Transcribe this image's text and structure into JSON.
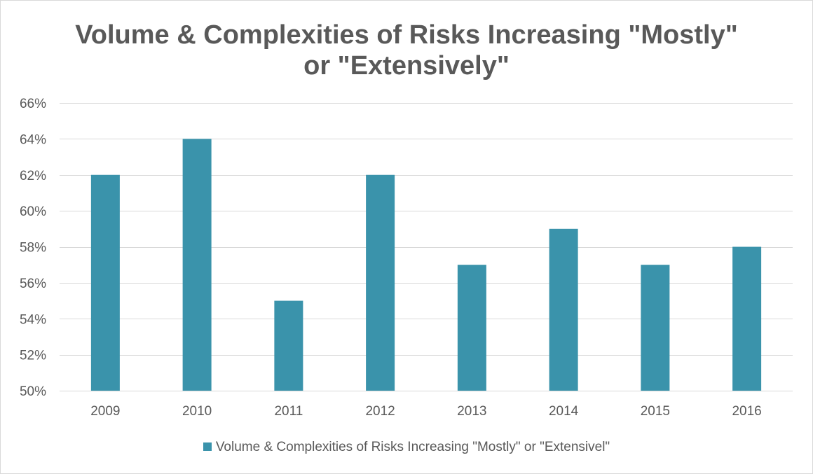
{
  "chart_data": {
    "type": "bar",
    "title_lines": [
      "Volume & Complexities of Risks Increasing \"Mostly\"",
      "or \"Extensively\""
    ],
    "categories": [
      "2009",
      "2010",
      "2011",
      "2012",
      "2013",
      "2014",
      "2015",
      "2016"
    ],
    "series": [
      {
        "name": "Volume & Complexities of Risks Increasing \"Mostly\" or \"Extensivel\"",
        "values": [
          62,
          64,
          55,
          62,
          57,
          59,
          57,
          58
        ],
        "color": "#3a93ab"
      }
    ],
    "ylim": [
      50,
      66
    ],
    "yticks": [
      50,
      52,
      54,
      56,
      58,
      60,
      62,
      64,
      66
    ],
    "ytick_labels": [
      "50%",
      "52%",
      "54%",
      "56%",
      "58%",
      "60%",
      "62%",
      "64%",
      "66%"
    ],
    "xlabel": "",
    "ylabel": "",
    "grid": true,
    "legend_position": "bottom",
    "colors": {
      "bar": "#3a93ab",
      "gridline": "#d9d9d9",
      "text": "#595959"
    }
  }
}
